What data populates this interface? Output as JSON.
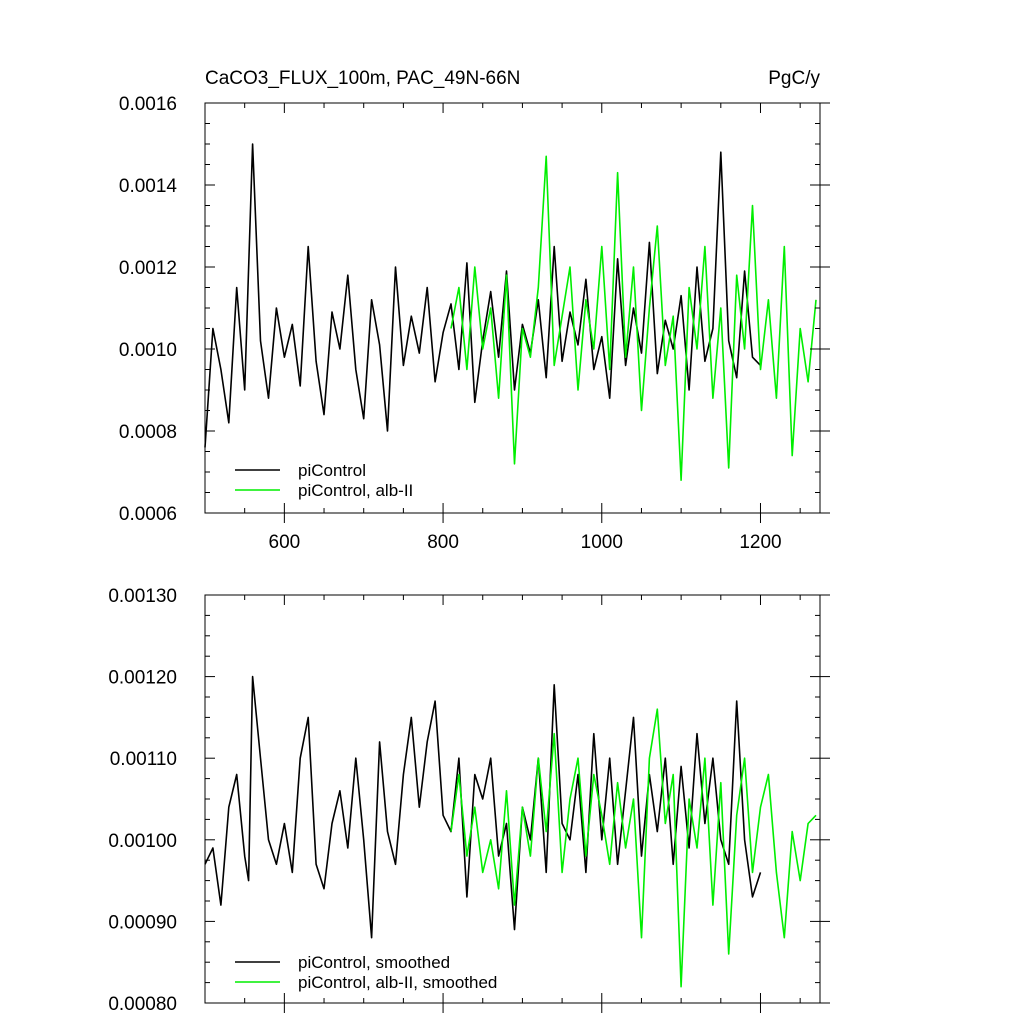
{
  "chart_data": [
    {
      "type": "line",
      "title": "CaCO3_FLUX_100m, PAC_49N-66N",
      "units": "PgC/y",
      "xlim": [
        500,
        1275
      ],
      "ylim": [
        0.0006,
        0.0016
      ],
      "xticks": [
        600,
        800,
        1000,
        1200
      ],
      "xtick_labels": [
        "600",
        "800",
        "1000",
        "1200"
      ],
      "yticks": [
        0.0006,
        0.0008,
        0.001,
        0.0012,
        0.0014,
        0.0016
      ],
      "ytick_labels": [
        "0.0006",
        "0.0008",
        "0.0010",
        "0.0012",
        "0.0014",
        "0.0016"
      ],
      "legend_position": "bottom-left",
      "series": [
        {
          "name": "piControl",
          "color": "#000000",
          "x": [
            500,
            510,
            520,
            530,
            540,
            550,
            560,
            570,
            580,
            590,
            600,
            610,
            620,
            630,
            640,
            650,
            660,
            670,
            680,
            690,
            700,
            710,
            720,
            730,
            740,
            750,
            760,
            770,
            780,
            790,
            800,
            810,
            820,
            830,
            840,
            850,
            860,
            870,
            880,
            890,
            900,
            910,
            920,
            930,
            940,
            950,
            960,
            970,
            980,
            990,
            1000,
            1010,
            1020,
            1030,
            1040,
            1050,
            1060,
            1070,
            1080,
            1090,
            1100,
            1110,
            1120,
            1130,
            1140,
            1150,
            1160,
            1170,
            1180,
            1190,
            1200
          ],
          "y": [
            0.00076,
            0.00105,
            0.00095,
            0.00082,
            0.00115,
            0.0009,
            0.0015,
            0.00102,
            0.00088,
            0.0011,
            0.00098,
            0.00106,
            0.00091,
            0.00125,
            0.00097,
            0.00084,
            0.00109,
            0.001,
            0.00118,
            0.00095,
            0.00083,
            0.00112,
            0.00101,
            0.0008,
            0.0012,
            0.00096,
            0.00108,
            0.00099,
            0.00115,
            0.00092,
            0.00104,
            0.00111,
            0.00095,
            0.00121,
            0.00087,
            0.00102,
            0.00114,
            0.00098,
            0.00119,
            0.0009,
            0.00106,
            0.00099,
            0.00112,
            0.00093,
            0.00125,
            0.00097,
            0.00109,
            0.00101,
            0.00117,
            0.00095,
            0.00103,
            0.00088,
            0.00122,
            0.00096,
            0.0011,
            0.00099,
            0.00126,
            0.00094,
            0.00107,
            0.001,
            0.00113,
            0.0009,
            0.0012,
            0.00097,
            0.00105,
            0.00148,
            0.00102,
            0.00093,
            0.00119,
            0.00098,
            0.00096
          ]
        },
        {
          "name": "piControl, alb-II",
          "color": "#00ee00",
          "x": [
            810,
            820,
            830,
            840,
            850,
            860,
            870,
            880,
            890,
            900,
            910,
            920,
            930,
            940,
            950,
            960,
            970,
            980,
            990,
            1000,
            1010,
            1020,
            1030,
            1040,
            1050,
            1060,
            1070,
            1080,
            1090,
            1100,
            1110,
            1120,
            1130,
            1140,
            1150,
            1160,
            1170,
            1180,
            1190,
            1200,
            1210,
            1220,
            1230,
            1240,
            1250,
            1260,
            1270
          ],
          "y": [
            0.00105,
            0.00115,
            0.00095,
            0.0012,
            0.001,
            0.0011,
            0.00088,
            0.00118,
            0.00072,
            0.00105,
            0.00098,
            0.00115,
            0.00147,
            0.00096,
            0.00108,
            0.0012,
            0.0009,
            0.00112,
            0.001,
            0.00125,
            0.00095,
            0.00143,
            0.00098,
            0.0012,
            0.00085,
            0.0011,
            0.0013,
            0.00096,
            0.00108,
            0.00068,
            0.00115,
            0.001,
            0.00125,
            0.00088,
            0.0011,
            0.00071,
            0.00118,
            0.001,
            0.00135,
            0.00095,
            0.00112,
            0.00088,
            0.00125,
            0.00074,
            0.00105,
            0.00092,
            0.00112
          ]
        }
      ]
    },
    {
      "type": "line",
      "xlim": [
        500,
        1275
      ],
      "ylim": [
        0.0008,
        0.0013
      ],
      "xticks": [
        600,
        800,
        1000,
        1200
      ],
      "yticks": [
        0.0008,
        0.0009,
        0.001,
        0.0011,
        0.0012,
        0.0013
      ],
      "ytick_labels": [
        "0.00080",
        "0.00090",
        "0.00100",
        "0.00110",
        "0.00120",
        "0.00130"
      ],
      "legend_position": "bottom-left",
      "series": [
        {
          "name": "piControl, smoothed",
          "color": "#000000",
          "x": [
            500,
            510,
            520,
            530,
            540,
            550,
            555,
            560,
            570,
            580,
            590,
            600,
            610,
            620,
            630,
            640,
            650,
            660,
            670,
            680,
            690,
            700,
            710,
            720,
            730,
            740,
            750,
            760,
            770,
            780,
            790,
            800,
            810,
            820,
            830,
            840,
            850,
            860,
            870,
            880,
            890,
            900,
            910,
            920,
            930,
            940,
            950,
            960,
            970,
            980,
            990,
            1000,
            1010,
            1020,
            1030,
            1040,
            1050,
            1060,
            1070,
            1080,
            1090,
            1100,
            1110,
            1120,
            1130,
            1140,
            1150,
            1160,
            1170,
            1180,
            1190,
            1200
          ],
          "y": [
            0.00097,
            0.00099,
            0.00092,
            0.00104,
            0.00108,
            0.00098,
            0.00095,
            0.0012,
            0.0011,
            0.001,
            0.00097,
            0.00102,
            0.00096,
            0.0011,
            0.00115,
            0.00097,
            0.00094,
            0.00102,
            0.00106,
            0.00099,
            0.0011,
            0.001,
            0.00088,
            0.00112,
            0.00101,
            0.00097,
            0.00108,
            0.00115,
            0.00104,
            0.00112,
            0.00117,
            0.00103,
            0.00101,
            0.0011,
            0.00093,
            0.00108,
            0.00105,
            0.0011,
            0.00098,
            0.00102,
            0.00089,
            0.00104,
            0.001,
            0.0011,
            0.00096,
            0.00119,
            0.00102,
            0.001,
            0.00108,
            0.00096,
            0.00113,
            0.001,
            0.0011,
            0.00097,
            0.00106,
            0.00115,
            0.00098,
            0.00108,
            0.00101,
            0.0011,
            0.00097,
            0.00109,
            0.00099,
            0.00113,
            0.00102,
            0.0011,
            0.001,
            0.00097,
            0.00117,
            0.001,
            0.00093,
            0.00096
          ]
        },
        {
          "name": "piControl, alb-II, smoothed",
          "color": "#00ee00",
          "x": [
            810,
            820,
            830,
            840,
            850,
            860,
            870,
            880,
            890,
            900,
            910,
            920,
            930,
            940,
            950,
            960,
            970,
            980,
            990,
            1000,
            1010,
            1020,
            1030,
            1040,
            1050,
            1060,
            1070,
            1080,
            1090,
            1100,
            1110,
            1120,
            1130,
            1140,
            1150,
            1160,
            1170,
            1180,
            1190,
            1200,
            1210,
            1220,
            1230,
            1240,
            1250,
            1260,
            1270
          ],
          "y": [
            0.00101,
            0.00108,
            0.00098,
            0.00104,
            0.00096,
            0.001,
            0.00094,
            0.00106,
            0.00092,
            0.00104,
            0.00098,
            0.0011,
            0.00101,
            0.00113,
            0.00096,
            0.00105,
            0.0011,
            0.00098,
            0.00108,
            0.00103,
            0.00097,
            0.00107,
            0.00099,
            0.00105,
            0.00088,
            0.0011,
            0.00116,
            0.00102,
            0.00108,
            0.00082,
            0.00105,
            0.00099,
            0.0011,
            0.00092,
            0.00107,
            0.00086,
            0.00103,
            0.0011,
            0.00096,
            0.00104,
            0.00108,
            0.00096,
            0.00088,
            0.00101,
            0.00095,
            0.00102,
            0.00103
          ]
        }
      ]
    }
  ]
}
